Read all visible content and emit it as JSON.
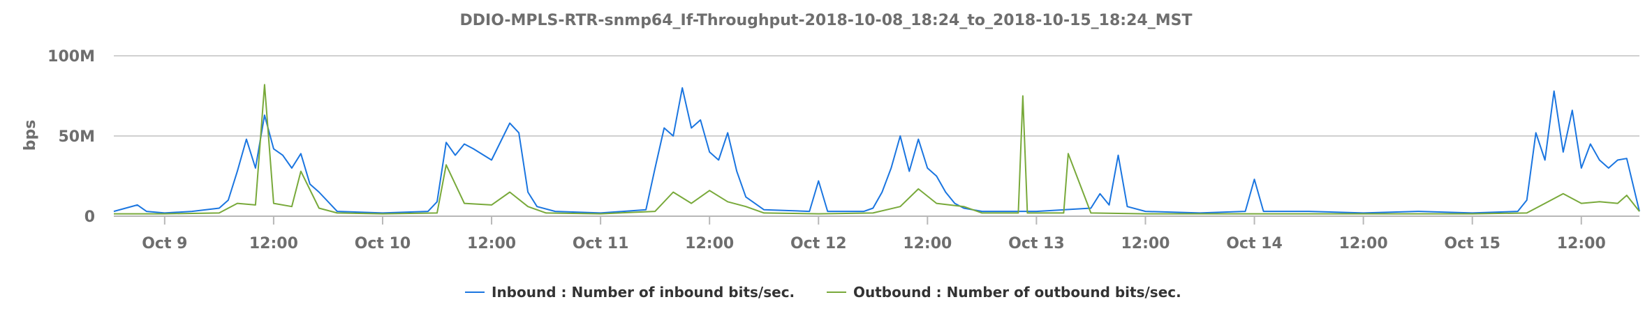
{
  "chart_data": {
    "type": "line",
    "title": "DDIO-MPLS-RTR-snmp64_If-Throughput-2018-10-08_18:24_to_2018-10-15_18:24_MST",
    "xlabel": "",
    "ylabel": "bps",
    "y_ticks": [
      {
        "value": 0,
        "label": "0"
      },
      {
        "value": 50000000,
        "label": "50M"
      },
      {
        "value": 100000000,
        "label": "100M"
      }
    ],
    "ylim": [
      0,
      100000000
    ],
    "xlim": [
      "2018-10-08 18:24",
      "2018-10-15 18:24"
    ],
    "x_ticks": [
      {
        "x": "2018-10-09 00:00",
        "label": "Oct 9"
      },
      {
        "x": "2018-10-09 12:00",
        "label": "12:00"
      },
      {
        "x": "2018-10-10 00:00",
        "label": "Oct 10"
      },
      {
        "x": "2018-10-10 12:00",
        "label": "12:00"
      },
      {
        "x": "2018-10-11 00:00",
        "label": "Oct 11"
      },
      {
        "x": "2018-10-11 12:00",
        "label": "12:00"
      },
      {
        "x": "2018-10-12 00:00",
        "label": "Oct 12"
      },
      {
        "x": "2018-10-12 12:00",
        "label": "12:00"
      },
      {
        "x": "2018-10-13 00:00",
        "label": "Oct 13"
      },
      {
        "x": "2018-10-13 12:00",
        "label": "12:00"
      },
      {
        "x": "2018-10-14 00:00",
        "label": "Oct 14"
      },
      {
        "x": "2018-10-14 12:00",
        "label": "12:00"
      },
      {
        "x": "2018-10-15 00:00",
        "label": "Oct 15"
      },
      {
        "x": "2018-10-15 12:00",
        "label": "12:00"
      }
    ],
    "grid": true,
    "legend_position": "bottom-center",
    "series": [
      {
        "name": "Inbound : Number of inbound bits/sec.",
        "color": "#1a75e0",
        "x": [
          "2018-10-08 18:24",
          "2018-10-08 21:00",
          "2018-10-08 22:00",
          "2018-10-09 00:00",
          "2018-10-09 03:00",
          "2018-10-09 06:00",
          "2018-10-09 07:00",
          "2018-10-09 08:00",
          "2018-10-09 09:00",
          "2018-10-09 10:00",
          "2018-10-09 11:00",
          "2018-10-09 12:00",
          "2018-10-09 13:00",
          "2018-10-09 14:00",
          "2018-10-09 15:00",
          "2018-10-09 16:00",
          "2018-10-09 17:00",
          "2018-10-09 19:00",
          "2018-10-10 00:00",
          "2018-10-10 05:00",
          "2018-10-10 06:00",
          "2018-10-10 07:00",
          "2018-10-10 08:00",
          "2018-10-10 09:00",
          "2018-10-10 10:00",
          "2018-10-10 12:00",
          "2018-10-10 14:00",
          "2018-10-10 15:00",
          "2018-10-10 16:00",
          "2018-10-10 17:00",
          "2018-10-10 19:00",
          "2018-10-11 00:00",
          "2018-10-11 05:00",
          "2018-10-11 06:00",
          "2018-10-11 07:00",
          "2018-10-11 08:00",
          "2018-10-11 09:00",
          "2018-10-11 10:00",
          "2018-10-11 11:00",
          "2018-10-11 12:00",
          "2018-10-11 13:00",
          "2018-10-11 14:00",
          "2018-10-11 15:00",
          "2018-10-11 16:00",
          "2018-10-11 18:00",
          "2018-10-11 23:00",
          "2018-10-12 00:00",
          "2018-10-12 01:00",
          "2018-10-12 05:00",
          "2018-10-12 06:00",
          "2018-10-12 07:00",
          "2018-10-12 08:00",
          "2018-10-12 09:00",
          "2018-10-12 10:00",
          "2018-10-12 11:00",
          "2018-10-12 12:00",
          "2018-10-12 13:00",
          "2018-10-12 14:00",
          "2018-10-12 15:00",
          "2018-10-12 16:00",
          "2018-10-12 18:00",
          "2018-10-13 00:00",
          "2018-10-13 06:00",
          "2018-10-13 07:00",
          "2018-10-13 08:00",
          "2018-10-13 09:00",
          "2018-10-13 10:00",
          "2018-10-13 12:00",
          "2018-10-13 18:00",
          "2018-10-13 23:00",
          "2018-10-14 00:00",
          "2018-10-14 01:00",
          "2018-10-14 06:00",
          "2018-10-14 12:00",
          "2018-10-14 18:00",
          "2018-10-15 00:00",
          "2018-10-15 05:00",
          "2018-10-15 06:00",
          "2018-10-15 07:00",
          "2018-10-15 08:00",
          "2018-10-15 09:00",
          "2018-10-15 10:00",
          "2018-10-15 11:00",
          "2018-10-15 12:00",
          "2018-10-15 13:00",
          "2018-10-15 14:00",
          "2018-10-15 15:00",
          "2018-10-15 16:00",
          "2018-10-15 17:00",
          "2018-10-15 18:24"
        ],
        "values": [
          3000000,
          7000000,
          3000000,
          2000000,
          3000000,
          5000000,
          10000000,
          28000000,
          48000000,
          30000000,
          63000000,
          42000000,
          38000000,
          30000000,
          39000000,
          20000000,
          15000000,
          3000000,
          2000000,
          3000000,
          9000000,
          46000000,
          38000000,
          45000000,
          42000000,
          35000000,
          58000000,
          52000000,
          15000000,
          6000000,
          3000000,
          2000000,
          4000000,
          30000000,
          55000000,
          50000000,
          80000000,
          55000000,
          60000000,
          40000000,
          35000000,
          52000000,
          28000000,
          12000000,
          4000000,
          3000000,
          22000000,
          3000000,
          3000000,
          5000000,
          15000000,
          30000000,
          50000000,
          28000000,
          48000000,
          30000000,
          25000000,
          15000000,
          8000000,
          5000000,
          3000000,
          3000000,
          5000000,
          14000000,
          7000000,
          38000000,
          6000000,
          3000000,
          2000000,
          3000000,
          23000000,
          3000000,
          3000000,
          2000000,
          3000000,
          2000000,
          3000000,
          10000000,
          52000000,
          35000000,
          78000000,
          40000000,
          66000000,
          30000000,
          45000000,
          35000000,
          30000000,
          35000000,
          36000000,
          3000000
        ]
      },
      {
        "name": "Outbound : Number of outbound bits/sec.",
        "color": "#78a93a",
        "x": [
          "2018-10-08 18:24",
          "2018-10-09 00:00",
          "2018-10-09 06:00",
          "2018-10-09 08:00",
          "2018-10-09 10:00",
          "2018-10-09 11:00",
          "2018-10-09 12:00",
          "2018-10-09 14:00",
          "2018-10-09 15:00",
          "2018-10-09 17:00",
          "2018-10-09 19:00",
          "2018-10-10 00:00",
          "2018-10-10 06:00",
          "2018-10-10 07:00",
          "2018-10-10 09:00",
          "2018-10-10 12:00",
          "2018-10-10 14:00",
          "2018-10-10 16:00",
          "2018-10-10 18:00",
          "2018-10-11 00:00",
          "2018-10-11 06:00",
          "2018-10-11 08:00",
          "2018-10-11 10:00",
          "2018-10-11 12:00",
          "2018-10-11 14:00",
          "2018-10-11 16:00",
          "2018-10-11 18:00",
          "2018-10-12 00:00",
          "2018-10-12 06:00",
          "2018-10-12 09:00",
          "2018-10-12 11:00",
          "2018-10-12 13:00",
          "2018-10-12 16:00",
          "2018-10-12 18:00",
          "2018-10-12 22:00",
          "2018-10-12 22:30",
          "2018-10-12 23:00",
          "2018-10-13 03:00",
          "2018-10-13 03:30",
          "2018-10-13 06:00",
          "2018-10-13 12:00",
          "2018-10-14 00:00",
          "2018-10-14 12:00",
          "2018-10-15 00:00",
          "2018-10-15 06:00",
          "2018-10-15 08:00",
          "2018-10-15 10:00",
          "2018-10-15 12:00",
          "2018-10-15 14:00",
          "2018-10-15 16:00",
          "2018-10-15 17:00",
          "2018-10-15 18:24"
        ],
        "values": [
          1500000,
          1500000,
          2000000,
          8000000,
          7000000,
          82000000,
          8000000,
          6000000,
          28000000,
          5000000,
          2000000,
          1500000,
          2000000,
          32000000,
          8000000,
          7000000,
          15000000,
          6000000,
          2000000,
          1500000,
          3000000,
          15000000,
          8000000,
          16000000,
          9000000,
          6000000,
          2000000,
          1500000,
          2000000,
          6000000,
          17000000,
          8000000,
          6000000,
          2000000,
          2000000,
          75000000,
          2000000,
          2000000,
          39000000,
          2000000,
          1500000,
          1500000,
          1500000,
          1500000,
          2000000,
          8000000,
          14000000,
          8000000,
          9000000,
          8000000,
          13000000,
          3000000
        ]
      }
    ]
  }
}
